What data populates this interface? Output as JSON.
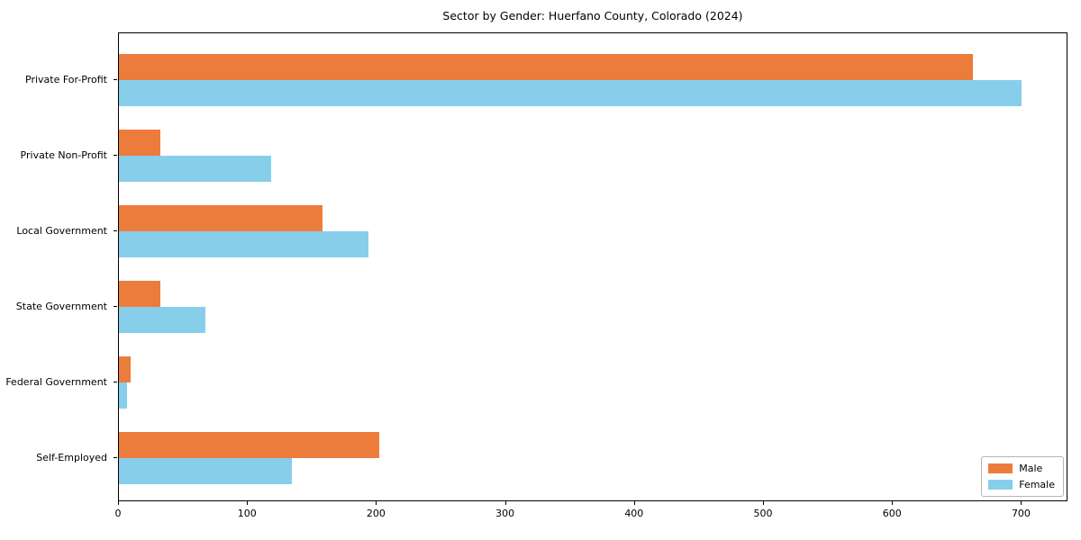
{
  "chart_data": {
    "type": "bar",
    "orientation": "horizontal",
    "title": "Sector by Gender: Huerfano County, Colorado (2024)",
    "categories": [
      "Private For-Profit",
      "Private Non-Profit",
      "Local Government",
      "State Government",
      "Federal Government",
      "Self-Employed"
    ],
    "series": [
      {
        "name": "Male",
        "color": "#ec7c3c",
        "values": [
          663,
          32,
          158,
          32,
          9,
          202
        ]
      },
      {
        "name": "Female",
        "color": "#87ceeb",
        "values": [
          701,
          118,
          194,
          67,
          6,
          134
        ]
      }
    ],
    "xlabel": "",
    "ylabel": "",
    "xlim": [
      0,
      736
    ],
    "x_ticks": [
      0,
      100,
      200,
      300,
      400,
      500,
      600,
      700
    ],
    "grid": false,
    "legend_position": "lower right",
    "frame": "full-box"
  }
}
